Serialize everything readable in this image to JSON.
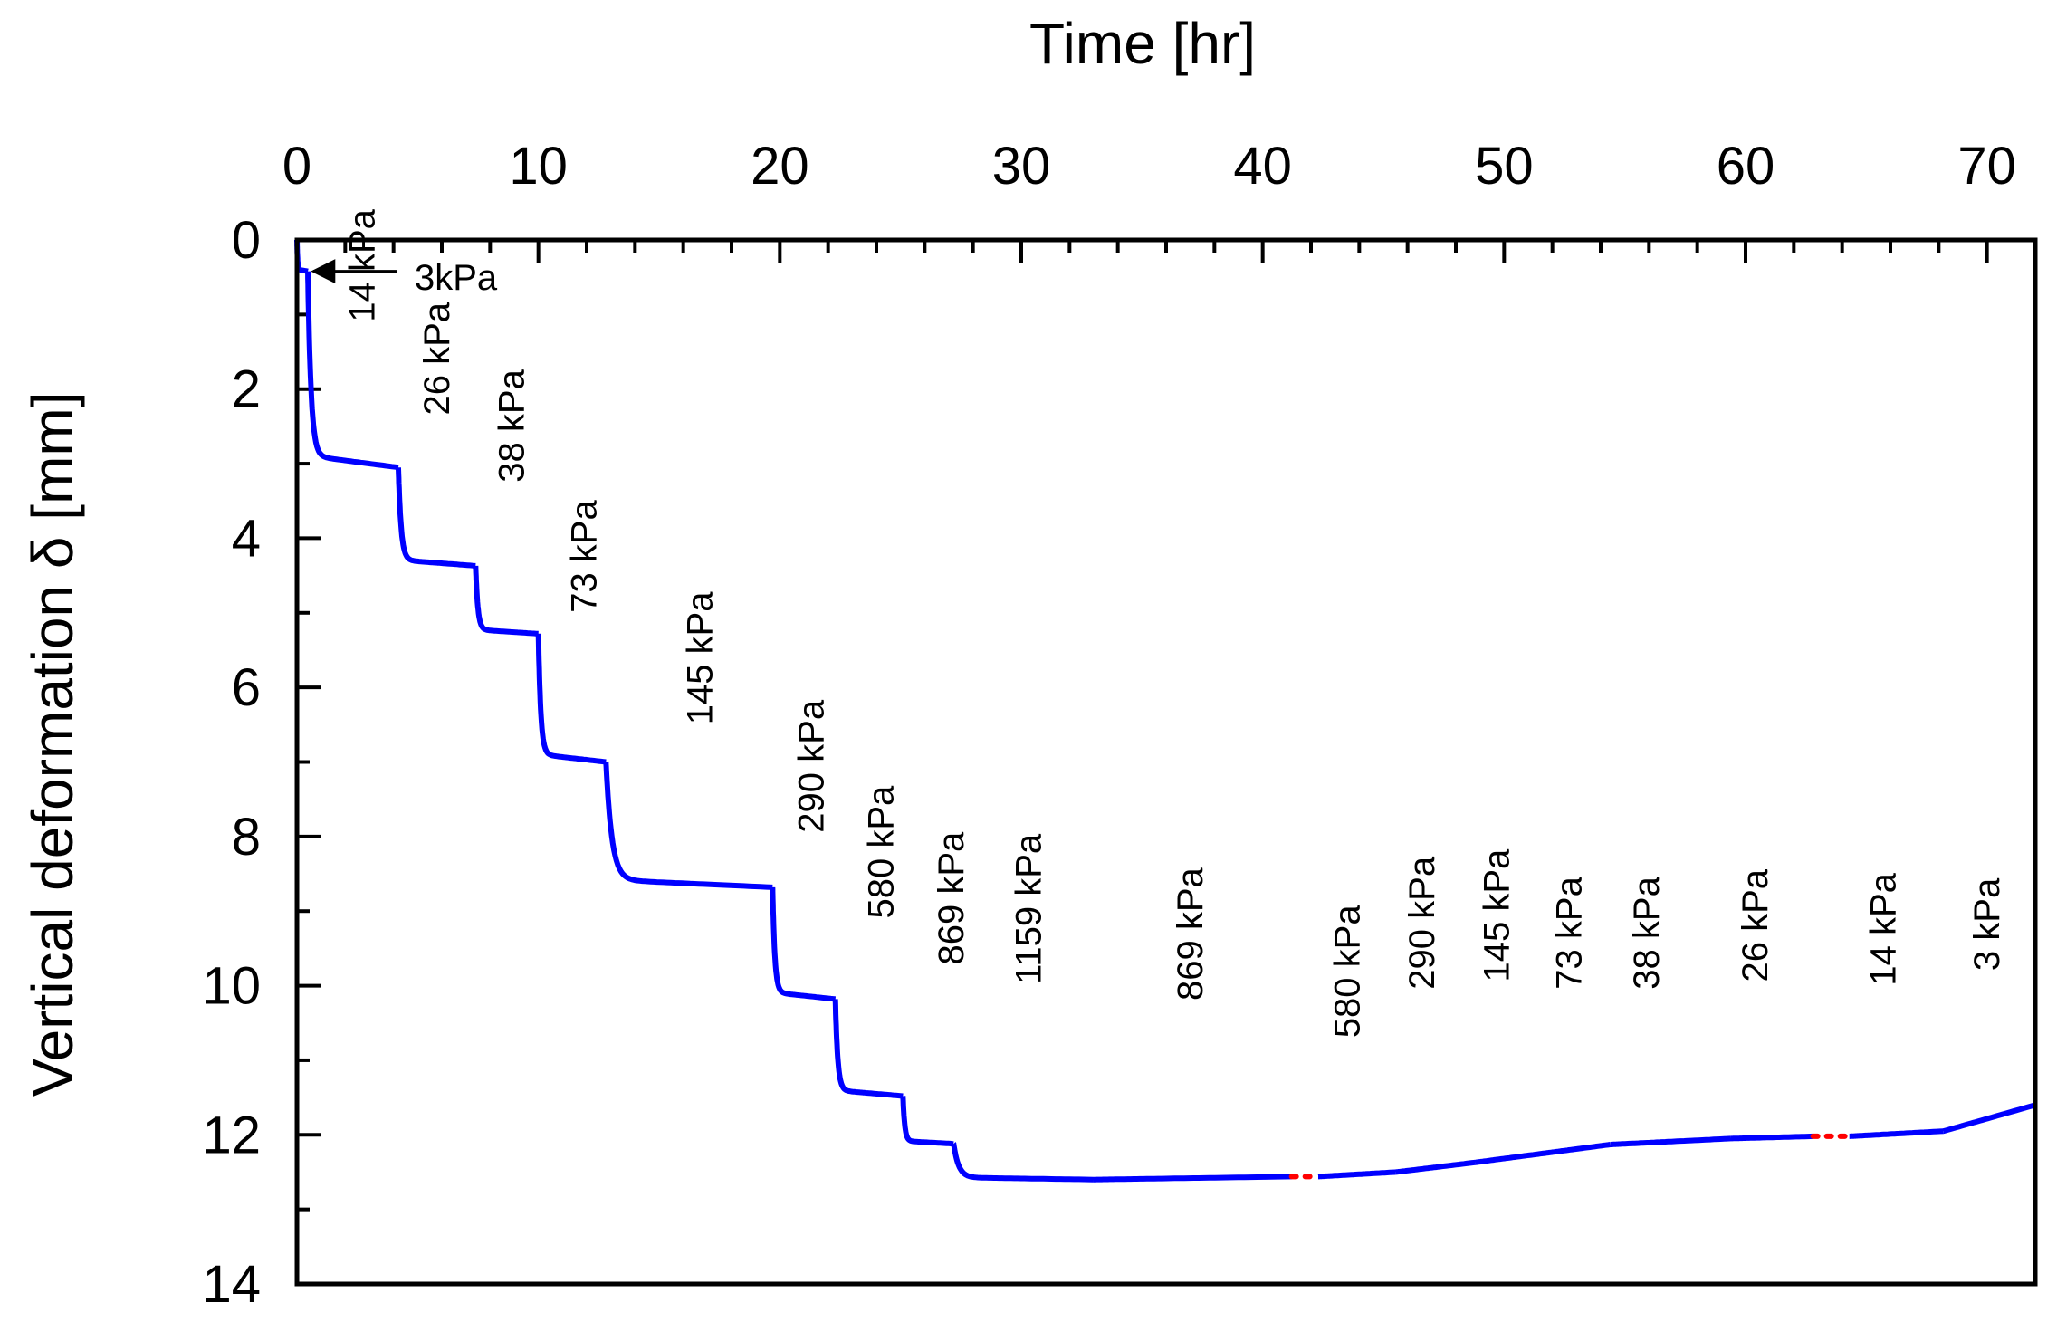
{
  "chart_data": {
    "type": "line",
    "title": "",
    "xlabel": "Time [hr]",
    "ylabel": "Vertical deformation δ [mm]",
    "xlim": [
      0,
      72
    ],
    "ylim": [
      14,
      0
    ],
    "y_inverted": true,
    "x_axis_position": "top",
    "xticks": [
      0,
      10,
      20,
      30,
      40,
      50,
      60,
      70
    ],
    "yticks": [
      0,
      2,
      4,
      6,
      8,
      10,
      12,
      14
    ],
    "xticklabels": [
      "0",
      "10",
      "20",
      "30",
      "40",
      "50",
      "60",
      "70"
    ],
    "yticklabels": [
      "0",
      "2",
      "4",
      "6",
      "8",
      "10",
      "12",
      "14"
    ],
    "grid": false,
    "series_color": "#0000ff",
    "gap_color": "#ff0000",
    "stages": [
      {
        "label": "3kPa",
        "start": 0.0,
        "end": 0.45,
        "d_start": 0.0,
        "d_end": 0.42
      },
      {
        "label": "14 kPa",
        "start": 0.45,
        "end": 4.2,
        "d_start": 0.42,
        "d_end": 3.05
      },
      {
        "label": "26 kPa",
        "start": 4.2,
        "end": 7.4,
        "d_start": 3.05,
        "d_end": 4.37
      },
      {
        "label": "38 kPa",
        "start": 7.4,
        "end": 10.0,
        "d_start": 4.37,
        "d_end": 5.28
      },
      {
        "label": "73 kPa",
        "start": 10.0,
        "end": 12.8,
        "d_start": 5.28,
        "d_end": 7.0
      },
      {
        "label": "145 kPa",
        "start": 12.8,
        "end": 19.7,
        "d_start": 7.0,
        "d_end": 8.68
      },
      {
        "label": "290 kPa",
        "start": 19.7,
        "end": 22.3,
        "d_start": 8.68,
        "d_end": 10.18
      },
      {
        "label": "580 kPa",
        "start": 22.3,
        "end": 25.1,
        "d_start": 10.18,
        "d_end": 11.48
      },
      {
        "label": "869 kPa",
        "start": 25.1,
        "end": 27.2,
        "d_start": 11.48,
        "d_end": 12.12
      },
      {
        "label": "1159 kPa",
        "start": 27.2,
        "end": 33.0,
        "d_start": 12.12,
        "d_end": 12.6
      },
      {
        "label": "869 kPa",
        "start": 33.0,
        "end": 41.2,
        "d_start": 12.6,
        "d_end": 12.56
      },
      {
        "label": "580 kPa",
        "start": 42.3,
        "end": 45.5,
        "d_start": 12.56,
        "d_end": 12.5
      },
      {
        "label": "290 kPa",
        "start": 45.5,
        "end": 48.8,
        "d_start": 12.5,
        "d_end": 12.37
      },
      {
        "label": "145 kPa",
        "start": 48.8,
        "end": 51.6,
        "d_start": 12.37,
        "d_end": 12.25
      },
      {
        "label": "73 kPa",
        "start": 51.6,
        "end": 54.4,
        "d_start": 12.25,
        "d_end": 12.13
      },
      {
        "label": "38 kPa",
        "start": 54.4,
        "end": 59.4,
        "d_start": 12.13,
        "d_end": 12.05
      },
      {
        "label": "26 kPa",
        "start": 59.4,
        "end": 62.8,
        "d_start": 12.05,
        "d_end": 12.02
      },
      {
        "label": "14 kPa",
        "start": 64.3,
        "end": 68.2,
        "d_start": 12.02,
        "d_end": 11.95
      },
      {
        "label": "3 kPa",
        "start": 68.2,
        "end": 72.0,
        "d_start": 11.95,
        "d_end": 11.6
      }
    ],
    "gaps": [
      {
        "from": [
          41.2,
          12.56
        ],
        "to": [
          42.3,
          12.56
        ]
      },
      {
        "from": [
          62.8,
          12.02
        ],
        "to": [
          64.3,
          12.02
        ]
      }
    ],
    "annotations": [
      {
        "text": "3kPa",
        "x": 4.2,
        "y": 0.5,
        "rotation": 0,
        "arrow_to": [
          0.45,
          0.42
        ]
      },
      {
        "text": "14 kPa",
        "x": 3.2,
        "y": 1.1,
        "rotation": -90
      },
      {
        "text": "26 kPa",
        "x": 6.3,
        "y": 2.35,
        "rotation": -90
      },
      {
        "text": "38 kPa",
        "x": 9.4,
        "y": 3.25,
        "rotation": -90
      },
      {
        "text": "73 kPa",
        "x": 12.4,
        "y": 5.0,
        "rotation": -90
      },
      {
        "text": "145 kPa",
        "x": 17.2,
        "y": 6.5,
        "rotation": -90
      },
      {
        "text": "290 kPa",
        "x": 21.8,
        "y": 7.95,
        "rotation": -90
      },
      {
        "text": "580 kPa",
        "x": 24.7,
        "y": 9.1,
        "rotation": -90
      },
      {
        "text": "869 kPa",
        "x": 27.6,
        "y": 9.72,
        "rotation": -90
      },
      {
        "text": "1159 kPa",
        "x": 30.8,
        "y": 9.98,
        "rotation": -90
      },
      {
        "text": "869 kPa",
        "x": 37.5,
        "y": 10.2,
        "rotation": -90
      },
      {
        "text": "580 kPa",
        "x": 44.0,
        "y": 10.7,
        "rotation": -90
      },
      {
        "text": "290 kPa",
        "x": 47.1,
        "y": 10.05,
        "rotation": -90
      },
      {
        "text": "145 kPa",
        "x": 50.2,
        "y": 9.95,
        "rotation": -90
      },
      {
        "text": "73 kPa",
        "x": 53.2,
        "y": 10.05,
        "rotation": -90
      },
      {
        "text": "38 kPa",
        "x": 56.4,
        "y": 10.05,
        "rotation": -90
      },
      {
        "text": "26 kPa",
        "x": 60.9,
        "y": 9.95,
        "rotation": -90
      },
      {
        "text": "14 kPa",
        "x": 66.2,
        "y": 10.0,
        "rotation": -90
      },
      {
        "text": "3 kPa",
        "x": 70.5,
        "y": 9.8,
        "rotation": -90
      }
    ]
  }
}
